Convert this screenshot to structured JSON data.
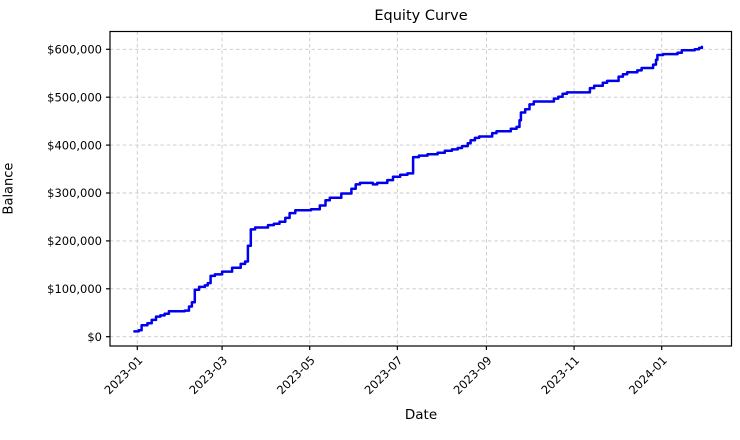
{
  "title": "Equity Curve",
  "xlabel": "Date",
  "ylabel": "Balance",
  "colors": {
    "line": "#0000ee",
    "grid": "#c8c8c8",
    "axis": "#000000",
    "background": "#ffffff",
    "text": "#000000"
  },
  "chart_data": {
    "type": "line",
    "title": "Equity Curve",
    "xlabel": "Date",
    "ylabel": "Balance",
    "style": "step-post",
    "grid": true,
    "grid_style": "dashed",
    "legend": "none",
    "line_color": "#0000ee",
    "x_ticks": [
      {
        "date": "2023-01-01",
        "label": "2023-01"
      },
      {
        "date": "2023-03-01",
        "label": "2023-03"
      },
      {
        "date": "2023-05-01",
        "label": "2023-05"
      },
      {
        "date": "2023-07-01",
        "label": "2023-07"
      },
      {
        "date": "2023-09-01",
        "label": "2023-09"
      },
      {
        "date": "2023-11-01",
        "label": "2023-11"
      },
      {
        "date": "2024-01-01",
        "label": "2024-01"
      }
    ],
    "y_ticks": [
      {
        "value": 0,
        "label": "$0"
      },
      {
        "value": 100000,
        "label": "$100,000"
      },
      {
        "value": 200000,
        "label": "$200,000"
      },
      {
        "value": 300000,
        "label": "$300,000"
      },
      {
        "value": 400000,
        "label": "$400,000"
      },
      {
        "value": 500000,
        "label": "$500,000"
      },
      {
        "value": 600000,
        "label": "$600,000"
      }
    ],
    "xlim": [
      "2022-12-13",
      "2024-02-18"
    ],
    "ylim": [
      -20000,
      640000
    ],
    "points": [
      {
        "date": "2022-12-30",
        "balance": 11000
      },
      {
        "date": "2023-01-02",
        "balance": 13500
      },
      {
        "date": "2023-01-04",
        "balance": 24000
      },
      {
        "date": "2023-01-08",
        "balance": 28000
      },
      {
        "date": "2023-01-11",
        "balance": 35000
      },
      {
        "date": "2023-01-14",
        "balance": 42000
      },
      {
        "date": "2023-01-17",
        "balance": 44500
      },
      {
        "date": "2023-01-20",
        "balance": 48000
      },
      {
        "date": "2023-01-23",
        "balance": 53000
      },
      {
        "date": "2023-02-03",
        "balance": 54500
      },
      {
        "date": "2023-02-06",
        "balance": 63000
      },
      {
        "date": "2023-02-08",
        "balance": 72000
      },
      {
        "date": "2023-02-10",
        "balance": 98000
      },
      {
        "date": "2023-02-13",
        "balance": 104000
      },
      {
        "date": "2023-02-17",
        "balance": 107000
      },
      {
        "date": "2023-02-19",
        "balance": 112000
      },
      {
        "date": "2023-02-21",
        "balance": 127000
      },
      {
        "date": "2023-02-24",
        "balance": 130000
      },
      {
        "date": "2023-03-01",
        "balance": 136000
      },
      {
        "date": "2023-03-08",
        "balance": 144000
      },
      {
        "date": "2023-03-14",
        "balance": 152000
      },
      {
        "date": "2023-03-17",
        "balance": 157000
      },
      {
        "date": "2023-03-19",
        "balance": 190000
      },
      {
        "date": "2023-03-21",
        "balance": 224000
      },
      {
        "date": "2023-03-24",
        "balance": 228000
      },
      {
        "date": "2023-04-02",
        "balance": 233000
      },
      {
        "date": "2023-04-06",
        "balance": 236000
      },
      {
        "date": "2023-04-10",
        "balance": 240000
      },
      {
        "date": "2023-04-14",
        "balance": 248000
      },
      {
        "date": "2023-04-17",
        "balance": 258000
      },
      {
        "date": "2023-04-21",
        "balance": 264000
      },
      {
        "date": "2023-05-02",
        "balance": 266000
      },
      {
        "date": "2023-05-08",
        "balance": 274000
      },
      {
        "date": "2023-05-12",
        "balance": 285000
      },
      {
        "date": "2023-05-15",
        "balance": 290000
      },
      {
        "date": "2023-05-23",
        "balance": 299000
      },
      {
        "date": "2023-05-30",
        "balance": 309000
      },
      {
        "date": "2023-06-02",
        "balance": 318000
      },
      {
        "date": "2023-06-05",
        "balance": 321000
      },
      {
        "date": "2023-06-14",
        "balance": 318000
      },
      {
        "date": "2023-06-17",
        "balance": 321000
      },
      {
        "date": "2023-06-24",
        "balance": 327000
      },
      {
        "date": "2023-06-28",
        "balance": 334000
      },
      {
        "date": "2023-07-03",
        "balance": 338000
      },
      {
        "date": "2023-07-08",
        "balance": 341000
      },
      {
        "date": "2023-07-12",
        "balance": 375000
      },
      {
        "date": "2023-07-16",
        "balance": 378000
      },
      {
        "date": "2023-07-22",
        "balance": 381000
      },
      {
        "date": "2023-07-29",
        "balance": 384000
      },
      {
        "date": "2023-08-03",
        "balance": 388000
      },
      {
        "date": "2023-08-08",
        "balance": 391000
      },
      {
        "date": "2023-08-12",
        "balance": 394000
      },
      {
        "date": "2023-08-15",
        "balance": 398000
      },
      {
        "date": "2023-08-19",
        "balance": 404000
      },
      {
        "date": "2023-08-21",
        "balance": 410000
      },
      {
        "date": "2023-08-24",
        "balance": 415000
      },
      {
        "date": "2023-08-27",
        "balance": 418000
      },
      {
        "date": "2023-09-05",
        "balance": 425000
      },
      {
        "date": "2023-09-08",
        "balance": 429000
      },
      {
        "date": "2023-09-18",
        "balance": 434000
      },
      {
        "date": "2023-09-22",
        "balance": 438000
      },
      {
        "date": "2023-09-24",
        "balance": 452000
      },
      {
        "date": "2023-09-25",
        "balance": 468000
      },
      {
        "date": "2023-09-28",
        "balance": 475000
      },
      {
        "date": "2023-10-01",
        "balance": 485000
      },
      {
        "date": "2023-10-04",
        "balance": 491000
      },
      {
        "date": "2023-10-18",
        "balance": 497000
      },
      {
        "date": "2023-10-21",
        "balance": 501000
      },
      {
        "date": "2023-10-24",
        "balance": 507000
      },
      {
        "date": "2023-10-27",
        "balance": 510000
      },
      {
        "date": "2023-11-12",
        "balance": 519000
      },
      {
        "date": "2023-11-15",
        "balance": 524000
      },
      {
        "date": "2023-11-21",
        "balance": 530000
      },
      {
        "date": "2023-11-24",
        "balance": 534000
      },
      {
        "date": "2023-12-02",
        "balance": 543000
      },
      {
        "date": "2023-12-05",
        "balance": 548000
      },
      {
        "date": "2023-12-08",
        "balance": 552000
      },
      {
        "date": "2023-12-15",
        "balance": 556000
      },
      {
        "date": "2023-12-18",
        "balance": 561000
      },
      {
        "date": "2023-12-26",
        "balance": 568000
      },
      {
        "date": "2023-12-28",
        "balance": 578000
      },
      {
        "date": "2023-12-29",
        "balance": 588000
      },
      {
        "date": "2024-01-02",
        "balance": 590000
      },
      {
        "date": "2024-01-12",
        "balance": 593000
      },
      {
        "date": "2024-01-15",
        "balance": 598000
      },
      {
        "date": "2024-01-24",
        "balance": 600000
      },
      {
        "date": "2024-01-27",
        "balance": 603000
      },
      {
        "date": "2024-01-29",
        "balance": 605000
      }
    ]
  }
}
